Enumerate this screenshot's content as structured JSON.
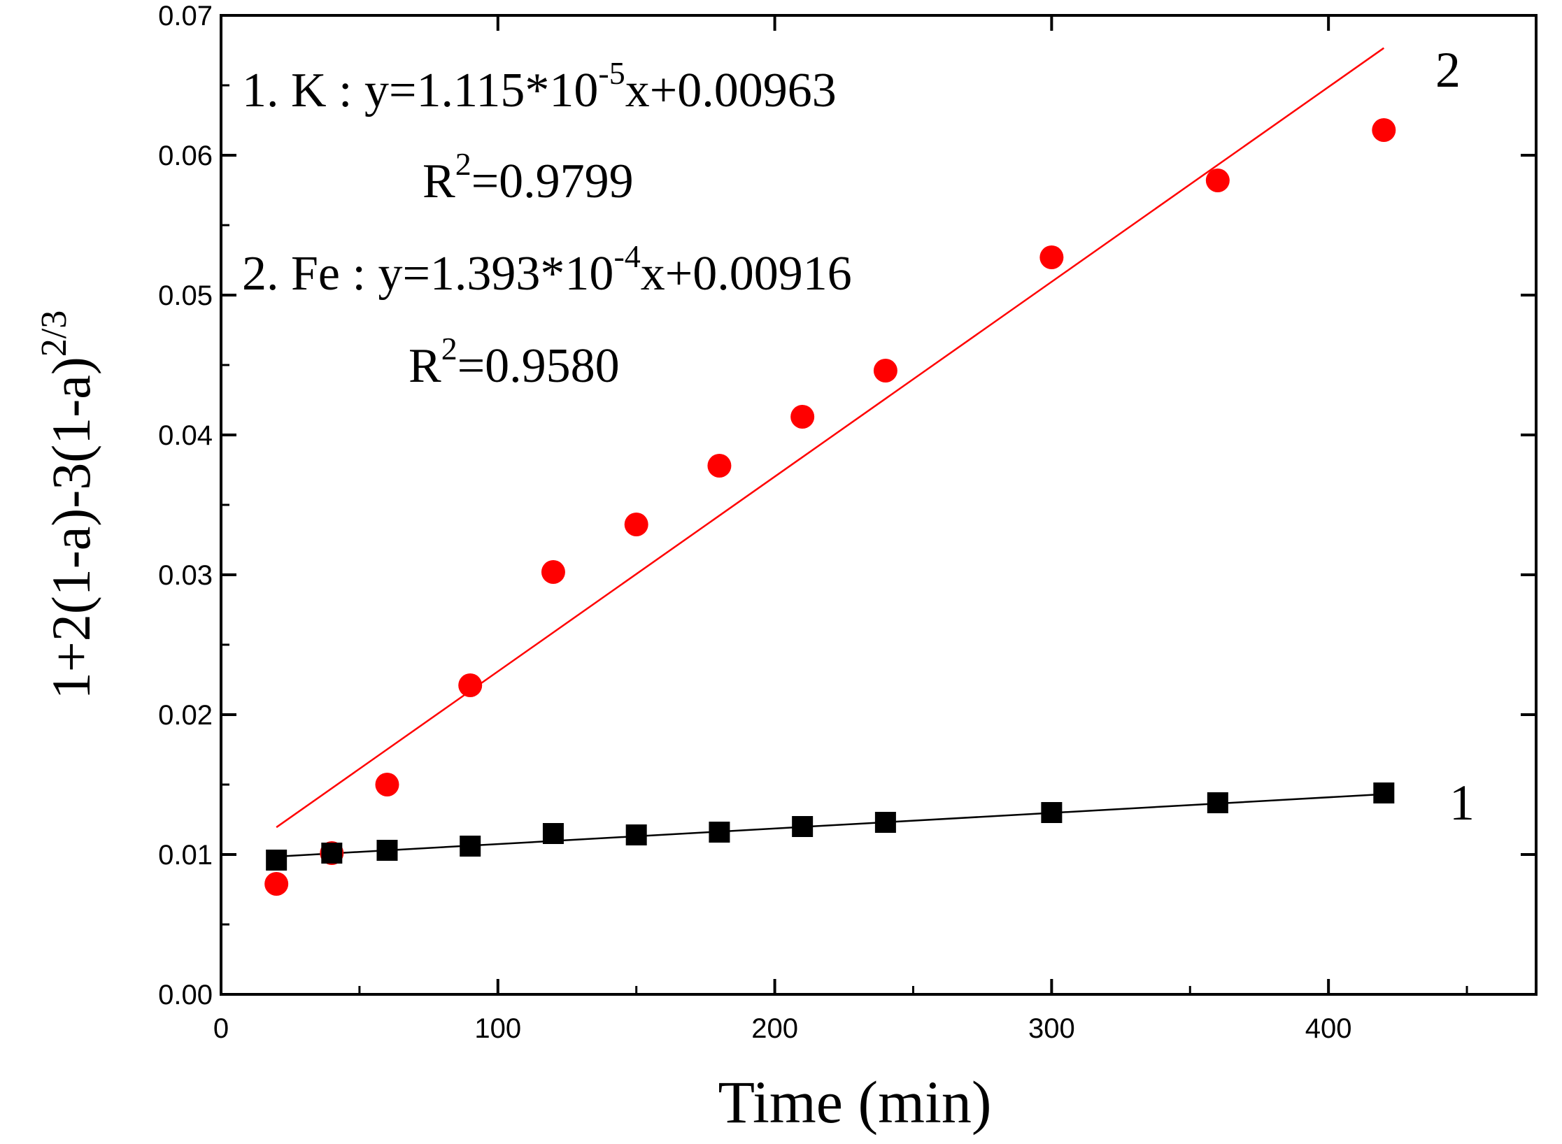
{
  "chart_data": {
    "type": "scatter",
    "title": "",
    "xlabel": "Time (min)",
    "ylabel": {
      "base": "1+2(1-a)-3(1-a)",
      "exponent": "2/3"
    },
    "xlim": [
      0,
      475
    ],
    "ylim": [
      0,
      0.07
    ],
    "xticks": [
      {
        "value": 0,
        "label": "0"
      },
      {
        "value": 100,
        "label": "100"
      },
      {
        "value": 200,
        "label": "200"
      },
      {
        "value": 300,
        "label": "300"
      },
      {
        "value": 400,
        "label": "400"
      }
    ],
    "yticks": [
      {
        "value": 0,
        "label": "0.00"
      },
      {
        "value": 0.01,
        "label": "0.01"
      },
      {
        "value": 0.02,
        "label": "0.02"
      },
      {
        "value": 0.03,
        "label": "0.03"
      },
      {
        "value": 0.04,
        "label": "0.04"
      },
      {
        "value": 0.05,
        "label": "0.05"
      },
      {
        "value": 0.06,
        "label": "0.06"
      },
      {
        "value": 0.07,
        "label": "0.07"
      }
    ],
    "grid": false,
    "series": [
      {
        "name": "K",
        "label": "1",
        "marker": "square",
        "color": "#000000",
        "x": [
          20,
          40,
          60,
          90,
          120,
          150,
          180,
          210,
          240,
          300,
          360,
          420
        ],
        "y": [
          0.0096,
          0.0101,
          0.0103,
          0.0106,
          0.0115,
          0.0114,
          0.0116,
          0.012,
          0.0123,
          0.013,
          0.0137,
          0.0144
        ],
        "fit": {
          "slope": 1.115e-05,
          "intercept": 0.00963,
          "x_range": [
            20,
            420
          ]
        }
      },
      {
        "name": "Fe",
        "label": "2",
        "marker": "circle",
        "color": "#ff0000",
        "x": [
          20,
          40,
          60,
          90,
          120,
          150,
          180,
          210,
          240,
          300,
          360,
          420
        ],
        "y": [
          0.0079,
          0.0101,
          0.015,
          0.0221,
          0.0302,
          0.0336,
          0.0378,
          0.0413,
          0.0446,
          0.0527,
          0.0582,
          0.0618
        ],
        "fit": {
          "slope": 0.0001393,
          "intercept": 0.00916,
          "x_range": [
            20,
            420
          ]
        }
      }
    ],
    "annotations": [
      {
        "prefix": "1.  K :  y=1.115*10",
        "exp": "-5",
        "suffix": "x+0.00963",
        "r2_base": "R",
        "r2_exp": "2",
        "r2_value": "=0.9799"
      },
      {
        "prefix": "2.  Fe : y=1.393*10",
        "exp": "-4",
        "suffix": "x+0.00916",
        "r2_base": "R",
        "r2_exp": "2",
        "r2_value": "=0.9580"
      }
    ]
  }
}
